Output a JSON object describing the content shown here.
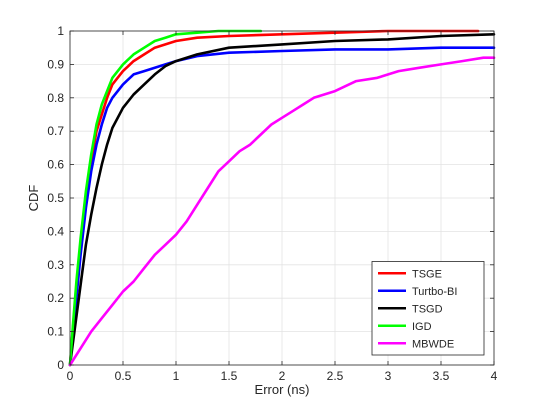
{
  "chart_data": {
    "type": "line",
    "title": "",
    "xlabel": "Error (ns)",
    "ylabel": "CDF",
    "xlim": [
      0,
      4
    ],
    "ylim": [
      0,
      1
    ],
    "xticks": [
      0,
      0.5,
      1,
      1.5,
      2,
      2.5,
      3,
      3.5,
      4
    ],
    "xtick_labels": [
      "0",
      "0.5",
      "1",
      "1.5",
      "2",
      "2.5",
      "3",
      "3.5",
      "4"
    ],
    "yticks": [
      0,
      0.1,
      0.2,
      0.3,
      0.4,
      0.5,
      0.6,
      0.7,
      0.8,
      0.9,
      1
    ],
    "ytick_labels": [
      "0",
      "0.1",
      "0.2",
      "0.3",
      "0.4",
      "0.5",
      "0.6",
      "0.7",
      "0.8",
      "0.9",
      "1"
    ],
    "grid": true,
    "legend_position": "bottom-right",
    "series": [
      {
        "name": "TSGE",
        "color": "#ff0000",
        "points": [
          [
            0,
            0
          ],
          [
            0.03,
            0.12
          ],
          [
            0.06,
            0.23
          ],
          [
            0.1,
            0.35
          ],
          [
            0.15,
            0.5
          ],
          [
            0.2,
            0.61
          ],
          [
            0.25,
            0.7
          ],
          [
            0.3,
            0.75
          ],
          [
            0.35,
            0.8
          ],
          [
            0.4,
            0.84
          ],
          [
            0.5,
            0.88
          ],
          [
            0.6,
            0.91
          ],
          [
            0.7,
            0.93
          ],
          [
            0.8,
            0.95
          ],
          [
            0.9,
            0.96
          ],
          [
            1.0,
            0.97
          ],
          [
            1.2,
            0.98
          ],
          [
            1.5,
            0.985
          ],
          [
            2.0,
            0.99
          ],
          [
            2.5,
            0.995
          ],
          [
            3.0,
            1.0
          ],
          [
            3.85,
            1.0
          ]
        ]
      },
      {
        "name": "Turtbo-BI",
        "color": "#0000ff",
        "points": [
          [
            0,
            0
          ],
          [
            0.03,
            0.1
          ],
          [
            0.06,
            0.2
          ],
          [
            0.1,
            0.33
          ],
          [
            0.15,
            0.47
          ],
          [
            0.2,
            0.58
          ],
          [
            0.25,
            0.66
          ],
          [
            0.3,
            0.72
          ],
          [
            0.35,
            0.77
          ],
          [
            0.4,
            0.8
          ],
          [
            0.5,
            0.84
          ],
          [
            0.6,
            0.87
          ],
          [
            0.7,
            0.88
          ],
          [
            0.8,
            0.89
          ],
          [
            0.9,
            0.9
          ],
          [
            1.0,
            0.91
          ],
          [
            1.2,
            0.925
          ],
          [
            1.5,
            0.935
          ],
          [
            2.0,
            0.94
          ],
          [
            2.5,
            0.945
          ],
          [
            3.0,
            0.945
          ],
          [
            3.5,
            0.95
          ],
          [
            4.0,
            0.95
          ]
        ]
      },
      {
        "name": "TSGD",
        "color": "#000000",
        "points": [
          [
            0,
            0
          ],
          [
            0.05,
            0.12
          ],
          [
            0.1,
            0.24
          ],
          [
            0.15,
            0.36
          ],
          [
            0.2,
            0.45
          ],
          [
            0.25,
            0.53
          ],
          [
            0.3,
            0.6
          ],
          [
            0.35,
            0.66
          ],
          [
            0.4,
            0.71
          ],
          [
            0.5,
            0.77
          ],
          [
            0.6,
            0.81
          ],
          [
            0.7,
            0.84
          ],
          [
            0.8,
            0.87
          ],
          [
            0.9,
            0.895
          ],
          [
            1.0,
            0.91
          ],
          [
            1.2,
            0.93
          ],
          [
            1.5,
            0.95
          ],
          [
            2.0,
            0.96
          ],
          [
            2.5,
            0.97
          ],
          [
            3.0,
            0.975
          ],
          [
            3.5,
            0.985
          ],
          [
            4.0,
            0.99
          ]
        ]
      },
      {
        "name": "IGD",
        "color": "#00ff00",
        "points": [
          [
            0,
            0
          ],
          [
            0.03,
            0.13
          ],
          [
            0.06,
            0.25
          ],
          [
            0.1,
            0.38
          ],
          [
            0.15,
            0.52
          ],
          [
            0.2,
            0.63
          ],
          [
            0.25,
            0.72
          ],
          [
            0.3,
            0.78
          ],
          [
            0.35,
            0.82
          ],
          [
            0.4,
            0.86
          ],
          [
            0.5,
            0.9
          ],
          [
            0.6,
            0.93
          ],
          [
            0.7,
            0.95
          ],
          [
            0.8,
            0.97
          ],
          [
            0.9,
            0.98
          ],
          [
            1.0,
            0.99
          ],
          [
            1.2,
            0.995
          ],
          [
            1.4,
            1.0
          ],
          [
            1.8,
            1.0
          ]
        ]
      },
      {
        "name": "MBWDE",
        "color": "#ff00ff",
        "points": [
          [
            0,
            0
          ],
          [
            0.1,
            0.05
          ],
          [
            0.2,
            0.1
          ],
          [
            0.3,
            0.14
          ],
          [
            0.4,
            0.18
          ],
          [
            0.5,
            0.22
          ],
          [
            0.6,
            0.25
          ],
          [
            0.7,
            0.29
          ],
          [
            0.8,
            0.33
          ],
          [
            0.9,
            0.36
          ],
          [
            1.0,
            0.39
          ],
          [
            1.1,
            0.43
          ],
          [
            1.2,
            0.48
          ],
          [
            1.3,
            0.53
          ],
          [
            1.4,
            0.58
          ],
          [
            1.5,
            0.61
          ],
          [
            1.6,
            0.64
          ],
          [
            1.7,
            0.66
          ],
          [
            1.8,
            0.69
          ],
          [
            1.9,
            0.72
          ],
          [
            2.0,
            0.74
          ],
          [
            2.1,
            0.76
          ],
          [
            2.2,
            0.78
          ],
          [
            2.3,
            0.8
          ],
          [
            2.5,
            0.82
          ],
          [
            2.7,
            0.85
          ],
          [
            2.9,
            0.86
          ],
          [
            3.1,
            0.88
          ],
          [
            3.3,
            0.89
          ],
          [
            3.5,
            0.9
          ],
          [
            3.7,
            0.91
          ],
          [
            3.9,
            0.92
          ],
          [
            4.0,
            0.92
          ]
        ]
      }
    ]
  }
}
